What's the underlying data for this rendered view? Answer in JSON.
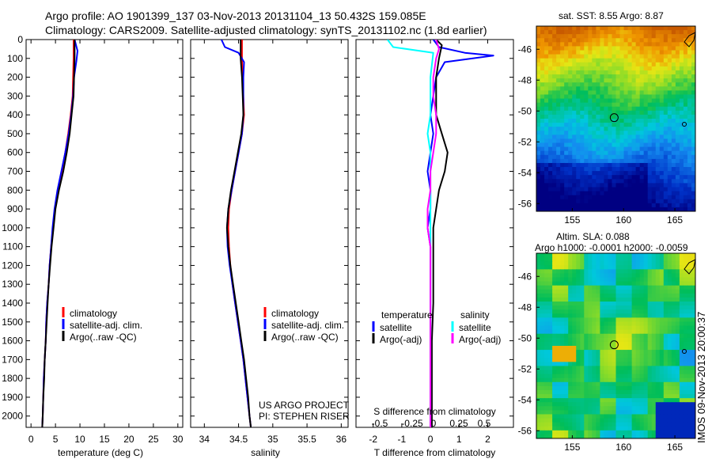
{
  "header": {
    "title_line1": "Argo profile: AO 1901399_137 03-Nov-2013 20131104_13 50.432S 159.085E",
    "title_line2": "Climatology: CARS2009. Satellite-adjusted climatology: synTS_20131102.nc (1.8d earlier)"
  },
  "stamp": "IMOS 09-Nov-2013 20:00:37",
  "colors": {
    "climatology": "#ff0000",
    "satellite": "#0000ff",
    "argo": "#000000",
    "salinity_satellite": "#00ffff",
    "salinity_argo": "#ff00ff"
  },
  "chart_data": [
    {
      "type": "line",
      "id": "temperature-profile",
      "xlabel": "temperature (deg C)",
      "ylabel": "",
      "xlim": [
        -1,
        31
      ],
      "ylim": [
        2060,
        0
      ],
      "xticks": [
        0,
        5,
        10,
        15,
        20,
        25,
        30
      ],
      "yticks": [
        0,
        100,
        200,
        300,
        400,
        500,
        600,
        700,
        800,
        900,
        1000,
        1100,
        1200,
        1300,
        1400,
        1500,
        1600,
        1700,
        1800,
        1900,
        2000
      ],
      "legend": [
        "climatology",
        "satellite-adj. clim.",
        "Argo(..raw -QC)"
      ],
      "legend_position": "lower-center",
      "series": [
        {
          "name": "climatology",
          "color": "#ff0000",
          "points": [
            [
              8.7,
              0
            ],
            [
              8.7,
              100
            ],
            [
              8.6,
              200
            ],
            [
              8.5,
              300
            ],
            [
              8.1,
              400
            ],
            [
              7.6,
              500
            ],
            [
              7.0,
              600
            ],
            [
              6.3,
              700
            ],
            [
              5.5,
              800
            ],
            [
              4.9,
              900
            ],
            [
              4.5,
              1000
            ],
            [
              4.1,
              1100
            ],
            [
              3.8,
              1200
            ],
            [
              3.6,
              1300
            ],
            [
              3.3,
              1400
            ],
            [
              3.1,
              1500
            ],
            [
              3.0,
              1600
            ],
            [
              2.8,
              1700
            ],
            [
              2.6,
              1800
            ],
            [
              2.5,
              1900
            ],
            [
              2.4,
              2000
            ],
            [
              2.3,
              2060
            ]
          ]
        },
        {
          "name": "satellite-adj. clim.",
          "color": "#0000ff",
          "points": [
            [
              8.9,
              0
            ],
            [
              9.5,
              60
            ],
            [
              9.3,
              110
            ],
            [
              8.8,
              200
            ],
            [
              8.6,
              300
            ],
            [
              8.2,
              400
            ],
            [
              7.7,
              500
            ],
            [
              7.0,
              600
            ],
            [
              6.2,
              700
            ],
            [
              5.4,
              800
            ],
            [
              4.8,
              900
            ],
            [
              4.4,
              1000
            ],
            [
              4.1,
              1100
            ],
            [
              3.8,
              1200
            ],
            [
              3.6,
              1300
            ],
            [
              3.3,
              1400
            ],
            [
              3.1,
              1500
            ],
            [
              3.0,
              1600
            ],
            [
              2.8,
              1700
            ],
            [
              2.6,
              1800
            ],
            [
              2.5,
              1900
            ],
            [
              2.4,
              2000
            ],
            [
              2.3,
              2060
            ]
          ]
        },
        {
          "name": "Argo(..raw -QC)",
          "color": "#000000",
          "points": [
            [
              8.9,
              0
            ],
            [
              8.9,
              100
            ],
            [
              8.8,
              200
            ],
            [
              8.7,
              300
            ],
            [
              8.3,
              400
            ],
            [
              7.9,
              500
            ],
            [
              7.3,
              600
            ],
            [
              6.6,
              700
            ],
            [
              5.7,
              800
            ],
            [
              5.0,
              900
            ],
            [
              4.6,
              1000
            ],
            [
              4.2,
              1100
            ],
            [
              3.9,
              1200
            ],
            [
              3.6,
              1300
            ],
            [
              3.4,
              1400
            ],
            [
              3.2,
              1500
            ],
            [
              3.0,
              1600
            ],
            [
              2.8,
              1700
            ],
            [
              2.7,
              1800
            ],
            [
              2.5,
              1900
            ],
            [
              2.4,
              2000
            ],
            [
              2.3,
              2060
            ]
          ]
        }
      ]
    },
    {
      "type": "line",
      "id": "salinity-profile",
      "xlabel": "salinity",
      "ylabel": "",
      "xlim": [
        33.8,
        36.1
      ],
      "ylim": [
        2060,
        0
      ],
      "xticks": [
        34,
        34.5,
        35,
        35.5,
        36
      ],
      "legend": [
        "climatology",
        "satellite-adj. clim.",
        "Argo(..raw -QC)"
      ],
      "legend_position": "lower-right",
      "annotation": [
        "US ARGO PROJECT",
        "PI: STEPHEN RISER"
      ],
      "series": [
        {
          "name": "climatology",
          "color": "#ff0000",
          "points": [
            [
              34.55,
              0
            ],
            [
              34.55,
              100
            ],
            [
              34.56,
              200
            ],
            [
              34.57,
              300
            ],
            [
              34.58,
              400
            ],
            [
              34.55,
              500
            ],
            [
              34.5,
              600
            ],
            [
              34.45,
              700
            ],
            [
              34.4,
              800
            ],
            [
              34.36,
              900
            ],
            [
              34.35,
              1000
            ],
            [
              34.36,
              1100
            ],
            [
              34.38,
              1200
            ],
            [
              34.41,
              1300
            ],
            [
              34.45,
              1400
            ],
            [
              34.49,
              1500
            ],
            [
              34.53,
              1600
            ],
            [
              34.57,
              1700
            ],
            [
              34.6,
              1800
            ],
            [
              34.63,
              1900
            ],
            [
              34.66,
              2000
            ],
            [
              34.68,
              2060
            ]
          ]
        },
        {
          "name": "satellite-adj. clim.",
          "color": "#0000ff",
          "points": [
            [
              34.25,
              0
            ],
            [
              34.3,
              40
            ],
            [
              34.5,
              70
            ],
            [
              34.58,
              120
            ],
            [
              34.57,
              200
            ],
            [
              34.57,
              300
            ],
            [
              34.57,
              400
            ],
            [
              34.55,
              500
            ],
            [
              34.5,
              600
            ],
            [
              34.45,
              700
            ],
            [
              34.4,
              800
            ],
            [
              34.35,
              900
            ],
            [
              34.33,
              1000
            ],
            [
              34.34,
              1100
            ],
            [
              34.37,
              1200
            ],
            [
              34.41,
              1300
            ],
            [
              34.45,
              1400
            ],
            [
              34.49,
              1500
            ],
            [
              34.53,
              1600
            ],
            [
              34.57,
              1700
            ],
            [
              34.6,
              1800
            ],
            [
              34.63,
              1900
            ],
            [
              34.66,
              2000
            ],
            [
              34.68,
              2060
            ]
          ]
        },
        {
          "name": "Argo(..raw -QC)",
          "color": "#000000",
          "points": [
            [
              34.53,
              0
            ],
            [
              34.53,
              100
            ],
            [
              34.55,
              200
            ],
            [
              34.56,
              300
            ],
            [
              34.57,
              400
            ],
            [
              34.54,
              500
            ],
            [
              34.49,
              600
            ],
            [
              34.44,
              700
            ],
            [
              34.39,
              800
            ],
            [
              34.35,
              900
            ],
            [
              34.33,
              1000
            ],
            [
              34.35,
              1100
            ],
            [
              34.38,
              1200
            ],
            [
              34.42,
              1300
            ],
            [
              34.46,
              1400
            ],
            [
              34.5,
              1500
            ],
            [
              34.54,
              1600
            ],
            [
              34.58,
              1700
            ],
            [
              34.61,
              1800
            ],
            [
              34.64,
              1900
            ],
            [
              34.66,
              2000
            ],
            [
              34.68,
              2060
            ]
          ]
        }
      ]
    },
    {
      "type": "line",
      "id": "difference-profile",
      "xlabel": "T difference from climatology",
      "xlabel_top": "S difference from climatology",
      "xlim": [
        -2.6,
        2.9
      ],
      "ylim": [
        2060,
        0
      ],
      "xticks": [
        -2,
        -1,
        0,
        1,
        2
      ],
      "xticks_top": [
        "-0.5",
        "-0.25",
        "0",
        "0.25",
        "0.5"
      ],
      "legend_groups": [
        {
          "title": "temperature",
          "entries": [
            "satellite",
            "Argo(-adj)"
          ]
        },
        {
          "title": "salinity",
          "entries": [
            "satellite",
            "Argo(-adj)"
          ]
        }
      ],
      "series": [
        {
          "name": "temperature satellite",
          "color": "#0000ff",
          "points": [
            [
              0.1,
              0
            ],
            [
              0.3,
              40
            ],
            [
              1.2,
              70
            ],
            [
              2.2,
              85
            ],
            [
              0.5,
              120
            ],
            [
              0.2,
              200
            ],
            [
              0.1,
              300
            ],
            [
              0.0,
              400
            ],
            [
              0.1,
              500
            ],
            [
              0.0,
              600
            ],
            [
              -0.1,
              700
            ],
            [
              0.0,
              800
            ],
            [
              0.0,
              900
            ],
            [
              -0.1,
              1000
            ],
            [
              0.0,
              1100
            ],
            [
              0.0,
              1200
            ],
            [
              0.0,
              1300
            ],
            [
              0.0,
              1400
            ],
            [
              0.0,
              1600
            ],
            [
              0.0,
              1800
            ],
            [
              0.0,
              2000
            ],
            [
              0.0,
              2060
            ]
          ]
        },
        {
          "name": "temperature Argo(-adj)",
          "color": "#000000",
          "points": [
            [
              0.2,
              0
            ],
            [
              0.4,
              30
            ],
            [
              0.3,
              100
            ],
            [
              0.2,
              200
            ],
            [
              0.2,
              300
            ],
            [
              0.2,
              400
            ],
            [
              0.4,
              500
            ],
            [
              0.6,
              600
            ],
            [
              0.5,
              700
            ],
            [
              0.3,
              800
            ],
            [
              0.2,
              900
            ],
            [
              0.1,
              1000
            ],
            [
              0.1,
              1100
            ],
            [
              0.1,
              1200
            ],
            [
              0.1,
              1300
            ],
            [
              0.1,
              1400
            ],
            [
              0.05,
              1600
            ],
            [
              0.05,
              1800
            ],
            [
              0.05,
              2000
            ],
            [
              0.05,
              2060
            ]
          ]
        },
        {
          "name": "salinity satellite",
          "color": "#00ffff",
          "points": [
            [
              -1.5,
              0
            ],
            [
              -1.3,
              40
            ],
            [
              0.1,
              70
            ],
            [
              0.0,
              200
            ],
            [
              0.0,
              300
            ],
            [
              0.0,
              400
            ],
            [
              -0.1,
              500
            ],
            [
              0.0,
              600
            ],
            [
              0.0,
              800
            ],
            [
              0.0,
              1000
            ],
            [
              0.0,
              1200
            ],
            [
              0.0,
              1400
            ],
            [
              0.0,
              1600
            ],
            [
              0.0,
              1800
            ],
            [
              0.0,
              2000
            ],
            [
              0.0,
              2060
            ]
          ]
        },
        {
          "name": "salinity Argo(-adj)",
          "color": "#ff00ff",
          "points": [
            [
              0.2,
              0
            ],
            [
              0.3,
              50
            ],
            [
              0.2,
              100
            ],
            [
              0.1,
              200
            ],
            [
              0.1,
              300
            ],
            [
              0.2,
              400
            ],
            [
              0.2,
              500
            ],
            [
              0.1,
              600
            ],
            [
              0.0,
              700
            ],
            [
              0.0,
              800
            ],
            [
              -0.1,
              900
            ],
            [
              -0.1,
              1000
            ],
            [
              0.0,
              1100
            ],
            [
              0.0,
              1200
            ],
            [
              0.0,
              1300
            ],
            [
              0.0,
              1400
            ],
            [
              0.0,
              1600
            ],
            [
              0.0,
              1800
            ],
            [
              0.0,
              2000
            ],
            [
              0.0,
              2060
            ]
          ]
        }
      ]
    },
    {
      "type": "heatmap",
      "id": "sst-map",
      "title": "sat. SST: 8.55 Argo: 8.87",
      "xlim": [
        151.5,
        167
      ],
      "ylim": [
        -56.5,
        -44.5
      ],
      "xticks": [
        155,
        160,
        165
      ],
      "yticks": [
        -46,
        -48,
        -50,
        -52,
        -54,
        -56
      ],
      "marker": {
        "lon": 159.085,
        "lat": -50.432
      }
    },
    {
      "type": "heatmap",
      "id": "sla-map",
      "title": "Altim. SLA: 0.088",
      "subtitle": "Argo h1000: -0.0001 h2000: -0.0059",
      "xlim": [
        151.5,
        167
      ],
      "ylim": [
        -56.5,
        -44.5
      ],
      "xticks": [
        155,
        160,
        165
      ],
      "yticks": [
        -46,
        -48,
        -50,
        -52,
        -54,
        -56
      ],
      "marker": {
        "lon": 159.085,
        "lat": -50.432
      }
    }
  ]
}
